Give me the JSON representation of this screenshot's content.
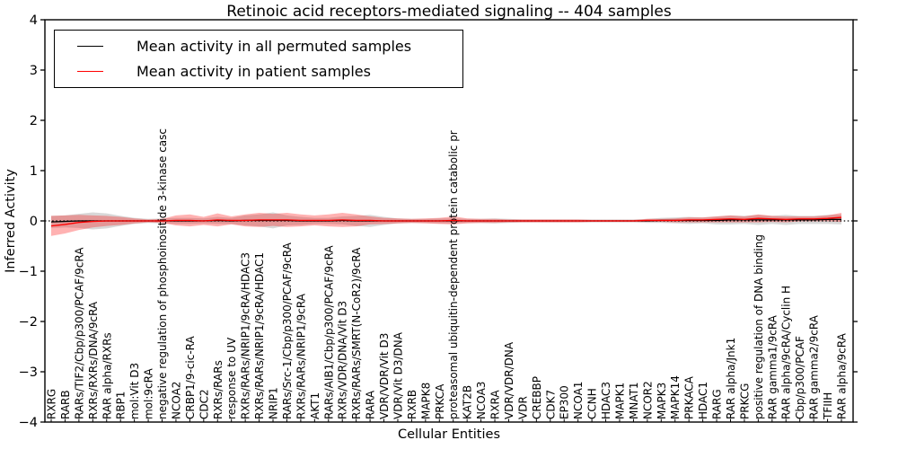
{
  "title": "Retinoic acid receptors-mediated signaling -- 404 samples",
  "axes": {
    "ylabel": "Inferred Activity",
    "xlabel": "Cellular Entities"
  },
  "legend": {
    "items": [
      {
        "label": "Mean activity in all permuted samples",
        "color": "#000000"
      },
      {
        "label": "Mean activity in patient samples",
        "color": "#ff0000"
      }
    ]
  },
  "colors": {
    "permuted_line": "#000000",
    "patient_line": "#ff0000",
    "permuted_band": "#999999",
    "patient_band": "#ff0000",
    "zero_line": "#000000",
    "frame": "#000000"
  },
  "chart_data": {
    "type": "line",
    "title": "Retinoic acid receptors-mediated signaling -- 404 samples",
    "xlabel": "Cellular Entities",
    "ylabel": "Inferred Activity",
    "ylim": [
      -4,
      4
    ],
    "yticks": [
      -4,
      -3,
      -2,
      -1,
      0,
      1,
      2,
      3,
      4
    ],
    "zero_reference_line": true,
    "legend_position": "upper left",
    "grid": false,
    "categories": [
      "RXRG",
      "RARB",
      "RARs/TIF2/Cbp/p300/PCAF/9cRA",
      "RXRs/RXRs/DNA/9cRA",
      "RAR alpha/RXRs",
      "RBP1",
      "mol:Vit D3",
      "mol:9cRA",
      "negative regulation of phosphoinositide 3-kinase casc",
      "NCOA2",
      "CRBP1/9-cic-RA",
      "CDC2",
      "RXRs/RARs",
      "response to UV",
      "RXRs/RARs/NRIP1/9cRA/HDAC3",
      "RXRs/RARs/NRIP1/9cRA/HDAC1",
      "NRIP1",
      "RARs/Src-1/Cbp/p300/PCAF/9cRA",
      "RXRs/RARs/NRIP1/9cRA",
      "AKT1",
      "RARs/AIB1/Cbp/p300/PCAF/9cRA",
      "RXRs/VDR/DNA/Vit D3",
      "RXRs/RARs/SMRT(N-CoR2)/9cRA",
      "RARA",
      "VDR/VDR/Vit D3",
      "VDR/Vit D3/DNA",
      "RXRB",
      "MAPK8",
      "PRKCA",
      "proteasomal ubiquitin-dependent protein catabolic pr",
      "KAT2B",
      "NCOA3",
      "RXRA",
      "VDR/VDR/DNA",
      "VDR",
      "CREBBP",
      "CDK7",
      "EP300",
      "NCOA1",
      "CCNH",
      "HDAC3",
      "MAPK1",
      "MNAT1",
      "NCOR2",
      "MAPK3",
      "MAPK14",
      "PRKACA",
      "HDAC1",
      "RARG",
      "RAR alpha/Jnk1",
      "PRKCG",
      "positive regulation of DNA binding",
      "RAR gamma1/9cRA",
      "RAR alpha/9cRA/Cyclin H",
      "Cbp/p300/PCAF",
      "RAR gamma2/9cRA",
      "TFIIH",
      "RAR alpha/9cRA"
    ],
    "series": [
      {
        "name": "Mean activity in all permuted samples",
        "color": "#000000",
        "values": [
          -0.02,
          -0.01,
          0,
          0,
          0,
          0,
          0,
          0,
          0,
          0,
          0,
          0,
          0.01,
          0,
          0.01,
          0.01,
          0.01,
          0.01,
          0,
          0,
          0,
          0.01,
          0,
          0,
          0,
          0,
          0,
          0,
          0,
          0,
          0,
          0,
          0,
          0,
          0,
          0,
          0,
          0,
          0,
          0,
          0,
          0,
          0,
          0,
          0.01,
          0.01,
          0.01,
          0.01,
          0.01,
          0.02,
          0.02,
          0.02,
          0.02,
          0.02,
          0.02,
          0.02,
          0.03,
          0.03
        ],
        "band_half_widths": [
          0.12,
          0.12,
          0.14,
          0.17,
          0.15,
          0.1,
          0.06,
          0.04,
          0.05,
          0.06,
          0.06,
          0.05,
          0.07,
          0.06,
          0.1,
          0.12,
          0.16,
          0.1,
          0.08,
          0.06,
          0.06,
          0.08,
          0.1,
          0.12,
          0.08,
          0.05,
          0.04,
          0.04,
          0.05,
          0.05,
          0.04,
          0.04,
          0.05,
          0.04,
          0.03,
          0.03,
          0.03,
          0.03,
          0.03,
          0.03,
          0.03,
          0.03,
          0.03,
          0.04,
          0.05,
          0.06,
          0.07,
          0.06,
          0.08,
          0.09,
          0.08,
          0.1,
          0.08,
          0.1,
          0.08,
          0.08,
          0.09,
          0.1
        ]
      },
      {
        "name": "Mean activity in patient samples",
        "color": "#ff0000",
        "values": [
          -0.1,
          -0.07,
          -0.03,
          -0.01,
          0,
          0,
          0,
          0,
          0,
          0.01,
          0.01,
          0,
          0.02,
          0.01,
          0.01,
          0.02,
          0.02,
          0.02,
          0.01,
          0.01,
          0.01,
          0.02,
          0.01,
          0.01,
          0,
          0,
          0,
          0,
          0,
          0.01,
          0,
          0,
          0,
          0,
          0,
          0,
          0,
          0,
          0,
          0,
          0,
          0,
          0,
          0.01,
          0.01,
          0.01,
          0.02,
          0.02,
          0.03,
          0.04,
          0.03,
          0.05,
          0.04,
          0.03,
          0.04,
          0.04,
          0.05,
          0.07
        ],
        "band_half_widths": [
          0.2,
          0.18,
          0.15,
          0.12,
          0.1,
          0.08,
          0.05,
          0.03,
          0.04,
          0.1,
          0.12,
          0.08,
          0.13,
          0.08,
          0.12,
          0.14,
          0.12,
          0.14,
          0.12,
          0.1,
          0.12,
          0.14,
          0.12,
          0.08,
          0.06,
          0.05,
          0.04,
          0.05,
          0.06,
          0.08,
          0.05,
          0.04,
          0.04,
          0.03,
          0.03,
          0.03,
          0.03,
          0.03,
          0.03,
          0.02,
          0.02,
          0.02,
          0.02,
          0.03,
          0.03,
          0.04,
          0.05,
          0.05,
          0.06,
          0.07,
          0.06,
          0.08,
          0.06,
          0.06,
          0.05,
          0.05,
          0.06,
          0.09
        ]
      }
    ]
  }
}
